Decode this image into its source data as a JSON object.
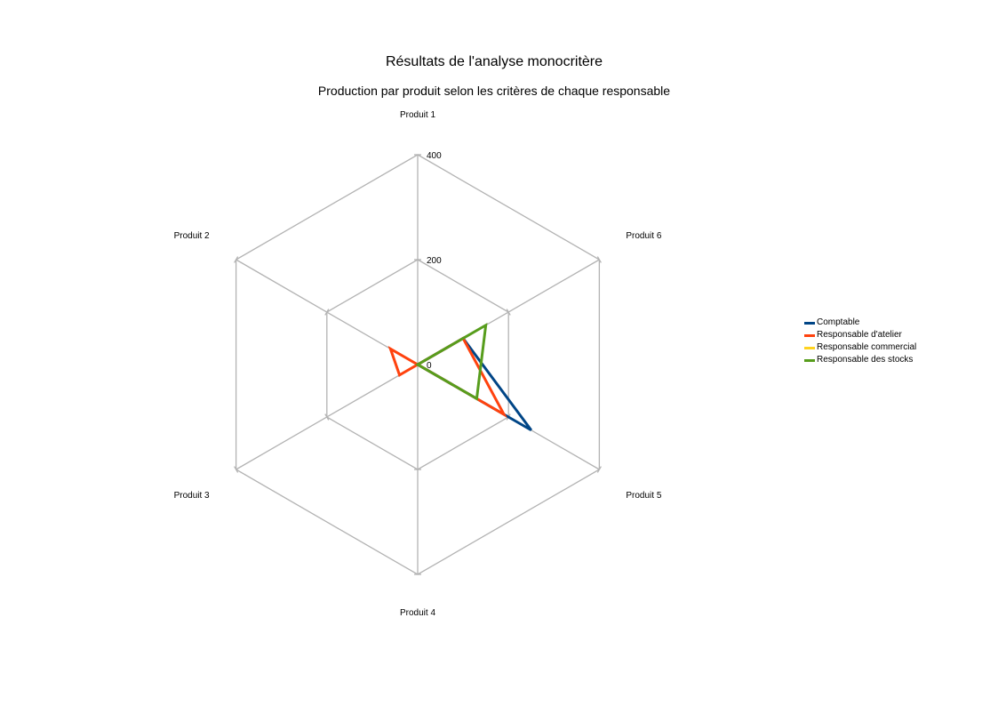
{
  "chart_data": {
    "type": "radar",
    "title": "Résultats de l'analyse monocritère",
    "subtitle": "Production par produit selon les critères de chaque responsable",
    "categories": [
      "Produit 1",
      "Produit 6",
      "Produit 5",
      "Produit 4",
      "Produit 3",
      "Produit 2"
    ],
    "rlim": [
      0,
      400
    ],
    "ticks": [
      0,
      200,
      400
    ],
    "tick_labels": [
      "0",
      "200",
      "400"
    ],
    "grid": true,
    "legend_position": "right",
    "series": [
      {
        "name": "Comptable",
        "color": "#004586",
        "values": [
          0,
          100,
          250,
          0,
          0,
          0
        ]
      },
      {
        "name": "Responsable d'atelier",
        "color": "#ff420e",
        "values": [
          0,
          100,
          190,
          0,
          40,
          60
        ]
      },
      {
        "name": "Responsable commercial",
        "color": "#ffd320",
        "values": [
          0,
          0,
          0,
          0,
          0,
          0
        ]
      },
      {
        "name": "Responsable des stocks",
        "color": "#579d1c",
        "values": [
          0,
          150,
          130,
          0,
          0,
          0
        ]
      }
    ]
  }
}
